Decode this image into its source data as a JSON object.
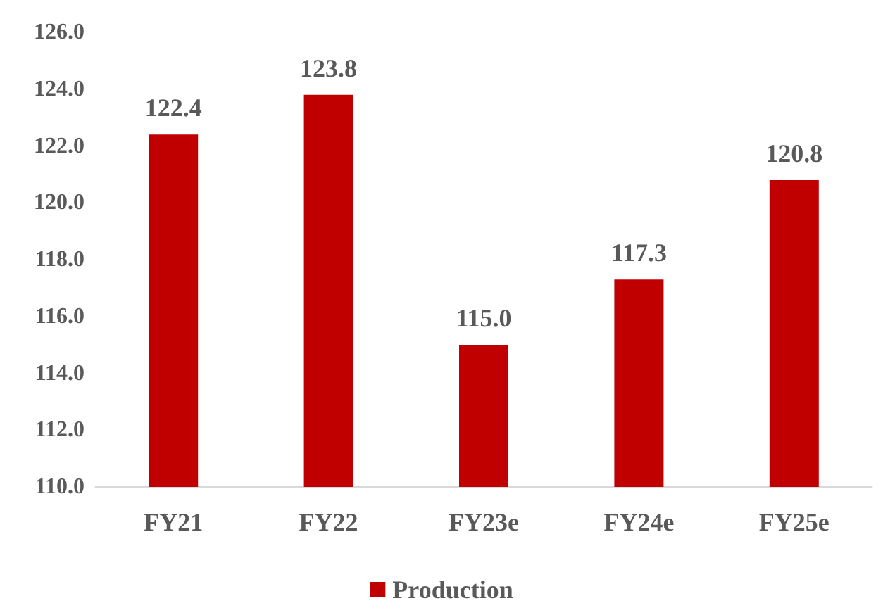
{
  "chart_data": {
    "type": "bar",
    "categories": [
      "FY21",
      "FY22",
      "FY23e",
      "FY24e",
      "FY25e"
    ],
    "series": [
      {
        "name": "Production",
        "color": "#c00000",
        "values": [
          122.4,
          123.8,
          115.0,
          117.3,
          120.8
        ]
      }
    ],
    "ylim": [
      110,
      126
    ],
    "yticks": [
      {
        "value": 110,
        "label": "110.0"
      },
      {
        "value": 112,
        "label": "112.0"
      },
      {
        "value": 114,
        "label": "114.0"
      },
      {
        "value": 116,
        "label": "116.0"
      },
      {
        "value": 118,
        "label": "118.0"
      },
      {
        "value": 120,
        "label": "120.0"
      },
      {
        "value": 122,
        "label": "122.0"
      },
      {
        "value": 124,
        "label": "124.0"
      },
      {
        "value": 126,
        "label": "126.0"
      }
    ],
    "value_labels": [
      [
        "122.4",
        "123.8",
        "115.0",
        "117.3",
        "120.8"
      ]
    ],
    "grid": false,
    "legend": "bottom"
  }
}
